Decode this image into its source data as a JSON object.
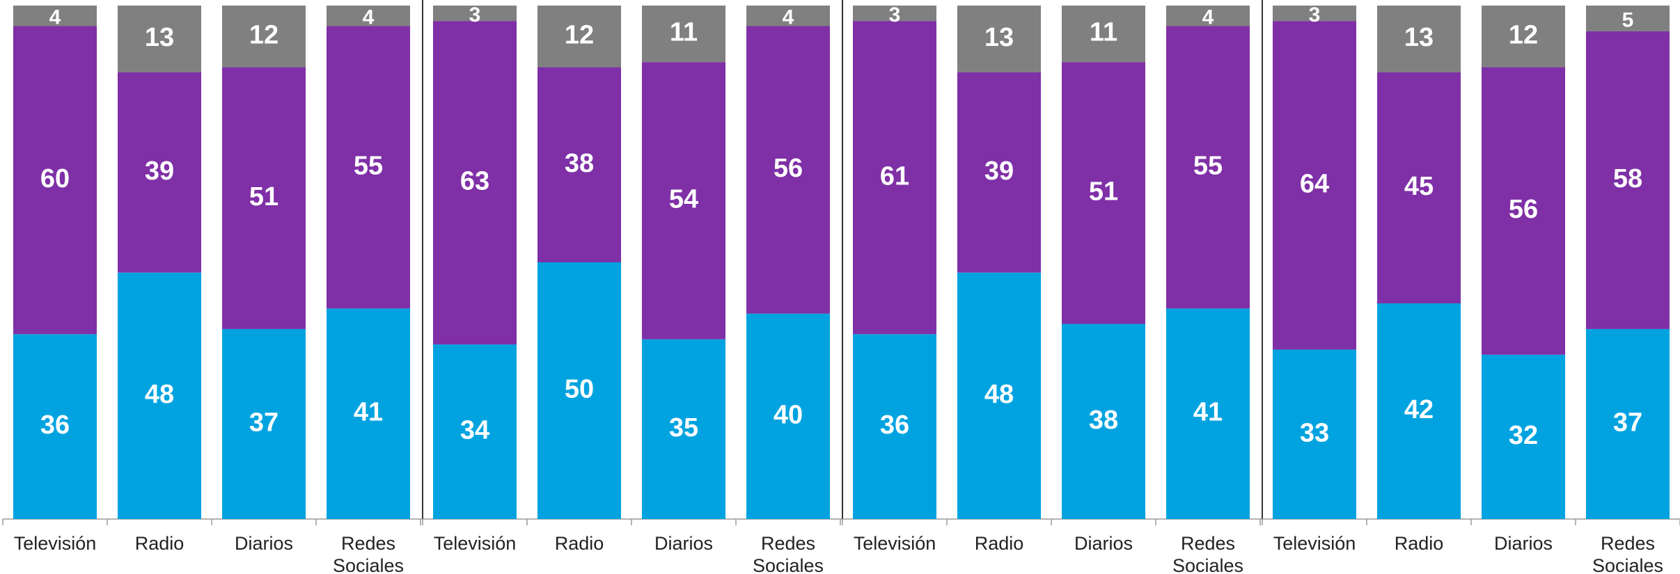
{
  "chart_data": {
    "type": "bar",
    "stacked": true,
    "normalized": true,
    "ylim": [
      0,
      100
    ],
    "grid": false,
    "legend": "none",
    "categories": [
      "Televisión",
      "Radio",
      "Diarios",
      "Redes Sociales"
    ],
    "series_colors": [
      "#00A3E0",
      "#7F30A6",
      "#808080"
    ],
    "label_color": "#FFFFFF",
    "panels": [
      {
        "bars": [
          {
            "category": "Televisión",
            "values": [
              36,
              60,
              4
            ]
          },
          {
            "category": "Radio",
            "values": [
              48,
              39,
              13
            ]
          },
          {
            "category": "Diarios",
            "values": [
              37,
              51,
              12
            ]
          },
          {
            "category": "Redes Sociales",
            "values": [
              41,
              55,
              4
            ]
          }
        ]
      },
      {
        "bars": [
          {
            "category": "Televisión",
            "values": [
              34,
              63,
              3
            ]
          },
          {
            "category": "Radio",
            "values": [
              50,
              38,
              12
            ]
          },
          {
            "category": "Diarios",
            "values": [
              35,
              54,
              11
            ]
          },
          {
            "category": "Redes Sociales",
            "values": [
              40,
              56,
              4
            ]
          }
        ]
      },
      {
        "bars": [
          {
            "category": "Televisión",
            "values": [
              36,
              61,
              3
            ]
          },
          {
            "category": "Radio",
            "values": [
              48,
              39,
              13
            ]
          },
          {
            "category": "Diarios",
            "values": [
              38,
              51,
              11
            ]
          },
          {
            "category": "Redes Sociales",
            "values": [
              41,
              55,
              4
            ]
          }
        ]
      },
      {
        "bars": [
          {
            "category": "Televisión",
            "values": [
              33,
              64,
              3
            ]
          },
          {
            "category": "Radio",
            "values": [
              42,
              45,
              13
            ]
          },
          {
            "category": "Diarios",
            "values": [
              32,
              56,
              12
            ]
          },
          {
            "category": "Redes Sociales",
            "values": [
              37,
              58,
              5
            ]
          }
        ]
      }
    ]
  }
}
